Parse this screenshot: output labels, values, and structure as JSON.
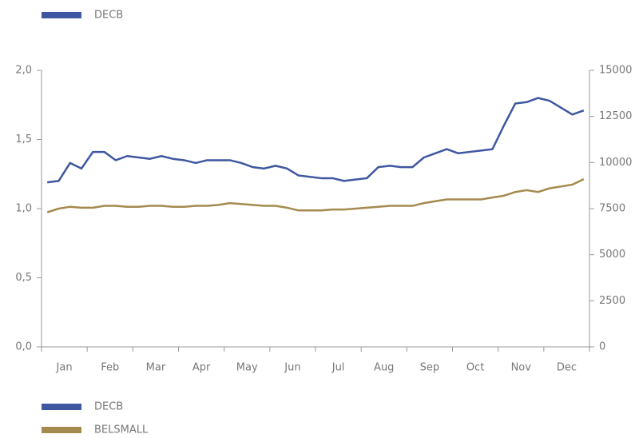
{
  "chart_data": {
    "type": "line",
    "categories": [
      null,
      "Jan",
      null,
      null,
      null,
      "Feb",
      null,
      null,
      null,
      "Mar",
      null,
      null,
      null,
      "Apr",
      null,
      null,
      null,
      "May",
      null,
      null,
      null,
      "Jun",
      null,
      null,
      null,
      "Jul",
      null,
      null,
      null,
      "Aug",
      null,
      null,
      null,
      "Sep",
      null,
      null,
      null,
      "Oct",
      null,
      null,
      null,
      "Nov",
      null,
      null,
      null,
      "Dec",
      null,
      null
    ],
    "series": [
      {
        "name": "DECB",
        "color": "#3f57a0",
        "values": [
          1.19,
          1.2,
          1.33,
          1.29,
          1.41,
          1.41,
          1.35,
          1.38,
          1.37,
          1.36,
          1.38,
          1.36,
          1.35,
          1.33,
          1.35,
          1.35,
          1.35,
          1.33,
          1.3,
          1.29,
          1.31,
          1.29,
          1.24,
          1.23,
          1.22,
          1.22,
          1.2,
          1.21,
          1.22,
          1.3,
          1.31,
          1.3,
          1.3,
          1.37,
          1.4,
          1.43,
          1.4,
          1.41,
          1.42,
          1.43,
          1.6,
          1.76,
          1.77,
          1.8,
          1.78,
          1.73,
          1.68,
          1.71
        ]
      },
      {
        "name": "BELSMALL",
        "color": "#a48a4f",
        "axis": "y2",
        "values": [
          7300,
          7500,
          7600,
          7550,
          7550,
          7650,
          7650,
          7600,
          7600,
          7650,
          7650,
          7600,
          7600,
          7650,
          7650,
          7700,
          7800,
          7750,
          7700,
          7650,
          7650,
          7550,
          7400,
          7400,
          7400,
          7450,
          7450,
          7500,
          7550,
          7600,
          7650,
          7650,
          7650,
          7800,
          7900,
          8000,
          8000,
          8000,
          8000,
          8100,
          8200,
          8400,
          8500,
          8400,
          8600,
          8700,
          8800,
          9100
        ]
      }
    ],
    "ylim": [
      0,
      2
    ],
    "yticks": [
      {
        "value": 0,
        "label": "0,0"
      },
      {
        "value": 0.5,
        "label": "0,5"
      },
      {
        "value": 1,
        "label": "1,0"
      },
      {
        "value": 1.5,
        "label": "1,5"
      },
      {
        "value": 2,
        "label": "2,0"
      }
    ],
    "y2lim": [
      0,
      15000
    ],
    "y2ticks": [
      0,
      2500,
      5000,
      7500,
      10000,
      12500,
      15000
    ],
    "grid": false
  }
}
